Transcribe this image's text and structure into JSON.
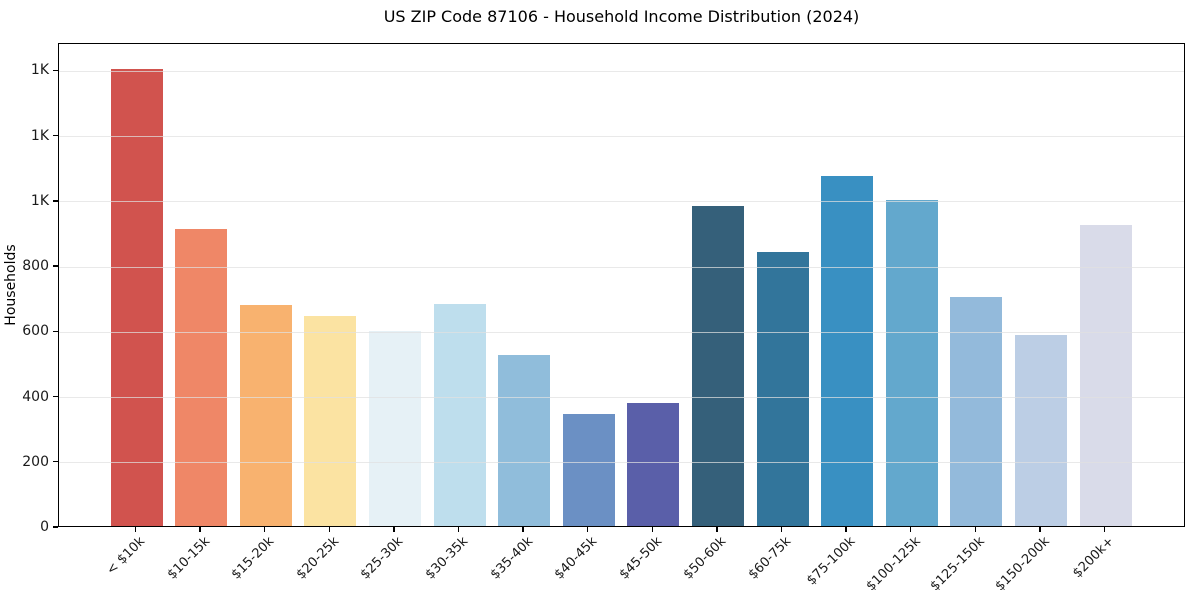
{
  "chart_data": {
    "type": "bar",
    "title": "US ZIP Code 87106 - Household Income Distribution (2024)",
    "xlabel": "",
    "ylabel": "Households",
    "categories": [
      "< $10k",
      "$10-15k",
      "$15-20k",
      "$20-25k",
      "$25-30k",
      "$30-35k",
      "$35-40k",
      "$40-45k",
      "$45-50k",
      "$50-60k",
      "$60-75k",
      "$75-100k",
      "$100-125k",
      "$125-150k",
      "$150-200k",
      "$200k+"
    ],
    "values": [
      1407,
      916,
      680,
      648,
      601,
      683,
      527,
      345,
      379,
      986,
      845,
      1079,
      1005,
      705,
      588,
      927
    ],
    "bar_colors": [
      "#d1534e",
      "#ef8767",
      "#f8b26f",
      "#fbe3a2",
      "#e6f1f6",
      "#bedeed",
      "#90bddb",
      "#6b90c4",
      "#5a5fa9",
      "#35607a",
      "#32759b",
      "#3990c2",
      "#63a8cd",
      "#93badb",
      "#bccee5",
      "#d9dbe9"
    ],
    "ylim": [
      0,
      1484
    ],
    "yticks": [
      {
        "value": 0,
        "label": "0"
      },
      {
        "value": 200,
        "label": "200"
      },
      {
        "value": 400,
        "label": "400"
      },
      {
        "value": 600,
        "label": "600"
      },
      {
        "value": 800,
        "label": "800"
      },
      {
        "value": 1000,
        "label": "1K"
      },
      {
        "value": 1200,
        "label": "1K"
      },
      {
        "value": 1400,
        "label": "1K"
      }
    ],
    "grid": true,
    "legend_position": "none"
  }
}
